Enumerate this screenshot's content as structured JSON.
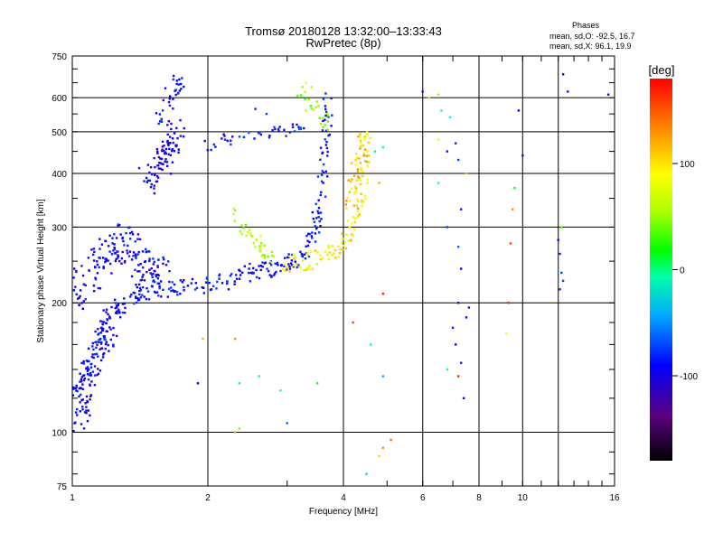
{
  "chart_data": {
    "type": "scatter",
    "title": "Tromsø 20180128 13:32:00–13:33:43",
    "subtitle": "RwPretec (8p)",
    "xlabel": "Frequency [MHz]",
    "ylabel": "Stationary phase Virtual Height [km]",
    "xscale": "log",
    "yscale": "log",
    "xlim": [
      1,
      16
    ],
    "ylim": [
      75,
      750
    ],
    "x_ticks": [
      1,
      2,
      4,
      6,
      8,
      10,
      16
    ],
    "x_tick_labels": [
      "1",
      "2",
      "4",
      "6",
      "8",
      "10",
      "16"
    ],
    "y_ticks": [
      75,
      100,
      200,
      300,
      400,
      500,
      600,
      750
    ],
    "y_tick_labels": [
      "75",
      "100",
      "200",
      "300",
      "400",
      "500",
      "600",
      "750"
    ],
    "x_gridlines": [
      2,
      4,
      6,
      8,
      10,
      12
    ],
    "y_gridlines": [
      100,
      200,
      300,
      400,
      500,
      600
    ],
    "grid": true,
    "phases_header": {
      "title": "Phases",
      "line1": "mean, sd,O: -92.5, 16.7",
      "line2": "mean, sd,X:  96.1, 19.9"
    },
    "colorbar": {
      "unit": "[deg]",
      "range": [
        -180,
        180
      ],
      "ticks": [
        100,
        0,
        -100
      ],
      "tick_labels": [
        "100",
        "0",
        "-100"
      ]
    },
    "traces": [
      {
        "name": "o_f_layer",
        "f": [
          1.0,
          1.05,
          1.1,
          1.15,
          1.2,
          1.3,
          1.4,
          1.5,
          1.7,
          1.9,
          2.1,
          2.3,
          2.5,
          2.7,
          2.9,
          3.1,
          3.3,
          3.45,
          3.55,
          3.62,
          3.67,
          3.7
        ],
        "h": [
          118,
          130,
          150,
          165,
          180,
          200,
          210,
          215,
          215,
          218,
          222,
          228,
          235,
          240,
          245,
          250,
          262,
          290,
          340,
          420,
          500,
          600
        ],
        "phase": -105,
        "jitter": 0.04,
        "n": 14
      },
      {
        "name": "o_f_cloud",
        "f": [
          1.0,
          1.1,
          1.2,
          1.3,
          1.4,
          1.5,
          1.6
        ],
        "h": [
          210,
          230,
          260,
          280,
          250,
          240,
          225
        ],
        "phase": -110,
        "jitter": 0.08,
        "n": 30
      },
      {
        "name": "o_low_spread",
        "f": [
          1.02,
          1.06,
          1.1,
          1.15,
          1.2,
          1.25
        ],
        "h": [
          105,
          120,
          140,
          155,
          175,
          195
        ],
        "phase": -115,
        "jitter": 0.06,
        "n": 22
      },
      {
        "name": "o_upper_blob",
        "f": [
          1.45,
          1.55,
          1.6,
          1.65,
          1.7
        ],
        "h": [
          380,
          400,
          430,
          460,
          500
        ],
        "phase": -118,
        "jitter": 0.07,
        "n": 22
      },
      {
        "name": "o_upper_trace",
        "f": [
          1.55,
          1.6,
          1.65,
          1.7,
          1.75
        ],
        "h": [
          520,
          560,
          600,
          640,
          660
        ],
        "phase": -112,
        "jitter": 0.05,
        "n": 8
      },
      {
        "name": "o_upper_branch",
        "f": [
          2.0,
          2.2,
          2.5,
          2.8,
          3.1,
          3.3
        ],
        "h": [
          460,
          480,
          495,
          500,
          505,
          510
        ],
        "phase": -100,
        "jitter": 0.03,
        "n": 8
      },
      {
        "name": "x_f_layer",
        "f": [
          2.9,
          3.2,
          3.5,
          3.8,
          4.0,
          4.2,
          4.35,
          4.45,
          4.5
        ],
        "h": [
          245,
          248,
          255,
          262,
          275,
          300,
          340,
          420,
          500
        ],
        "phase": 110,
        "jitter": 0.04,
        "n": 12
      },
      {
        "name": "x_f_cloud",
        "f": [
          4.1,
          4.2,
          4.3,
          4.4,
          4.5
        ],
        "h": [
          320,
          360,
          400,
          440,
          480
        ],
        "phase": 120,
        "jitter": 0.05,
        "n": 14
      },
      {
        "name": "x_low_branch",
        "f": [
          2.3,
          2.4,
          2.5,
          2.6,
          2.7,
          2.8
        ],
        "h": [
          320,
          300,
          285,
          270,
          262,
          255
        ],
        "phase": 80,
        "jitter": 0.04,
        "n": 7
      },
      {
        "name": "x_upper_branch",
        "f": [
          3.2,
          3.4,
          3.6,
          3.7
        ],
        "h": [
          620,
          580,
          540,
          520
        ],
        "phase": 70,
        "jitter": 0.04,
        "n": 7
      }
    ],
    "scattered_points": [
      [
        2.3,
        100,
        130
      ],
      [
        2.35,
        102,
        70
      ],
      [
        2.3,
        165,
        140
      ],
      [
        2.35,
        130,
        -10
      ],
      [
        2.6,
        135,
        -20
      ],
      [
        2.9,
        125,
        -30
      ],
      [
        3.0,
        105,
        -80
      ],
      [
        3.5,
        130,
        20
      ],
      [
        4.2,
        180,
        160
      ],
      [
        4.6,
        160,
        -40
      ],
      [
        4.8,
        88,
        120
      ],
      [
        4.9,
        92,
        140
      ],
      [
        5.1,
        96,
        150
      ],
      [
        4.5,
        80,
        -50
      ],
      [
        4.9,
        135,
        -60
      ],
      [
        4.8,
        380,
        130
      ],
      [
        4.7,
        450,
        -10
      ],
      [
        4.9,
        460,
        -20
      ],
      [
        4.9,
        210,
        170
      ],
      [
        6.0,
        620,
        -150
      ],
      [
        6.2,
        600,
        120
      ],
      [
        6.5,
        610,
        80
      ],
      [
        6.6,
        560,
        -30
      ],
      [
        6.9,
        540,
        -40
      ],
      [
        6.5,
        480,
        100
      ],
      [
        6.8,
        450,
        -100
      ],
      [
        7.1,
        470,
        -100
      ],
      [
        7.2,
        430,
        -90
      ],
      [
        7.5,
        400,
        130
      ],
      [
        7.3,
        330,
        -100
      ],
      [
        6.5,
        380,
        -20
      ],
      [
        6.8,
        300,
        -90
      ],
      [
        7.2,
        270,
        -80
      ],
      [
        7.3,
        240,
        -110
      ],
      [
        7.2,
        200,
        -130
      ],
      [
        7.6,
        195,
        -140
      ],
      [
        7.5,
        185,
        -120
      ],
      [
        7.0,
        175,
        -100
      ],
      [
        7.1,
        160,
        -110
      ],
      [
        7.3,
        145,
        -100
      ],
      [
        6.8,
        140,
        -20
      ],
      [
        7.2,
        135,
        170
      ],
      [
        7.4,
        120,
        -110
      ],
      [
        9.8,
        560,
        -110
      ],
      [
        10.0,
        440,
        -120
      ],
      [
        9.6,
        370,
        20
      ],
      [
        9.5,
        330,
        140
      ],
      [
        9.4,
        275,
        160
      ],
      [
        9.3,
        200,
        170
      ],
      [
        9.2,
        170,
        110
      ],
      [
        12.3,
        680,
        -110
      ],
      [
        12.6,
        620,
        -120
      ],
      [
        15.5,
        610,
        -120
      ],
      [
        12.2,
        300,
        60
      ],
      [
        12.0,
        280,
        -120
      ],
      [
        12.1,
        260,
        -100
      ],
      [
        12.2,
        235,
        -90
      ],
      [
        12.3,
        225,
        -90
      ],
      [
        12.1,
        215,
        -100
      ],
      [
        1.95,
        165,
        130
      ],
      [
        1.9,
        130,
        -110
      ],
      [
        3.3,
        650,
        110
      ],
      [
        3.4,
        635,
        90
      ],
      [
        3.35,
        595,
        80
      ],
      [
        2.55,
        565,
        -100
      ],
      [
        2.7,
        550,
        -90
      ]
    ]
  }
}
